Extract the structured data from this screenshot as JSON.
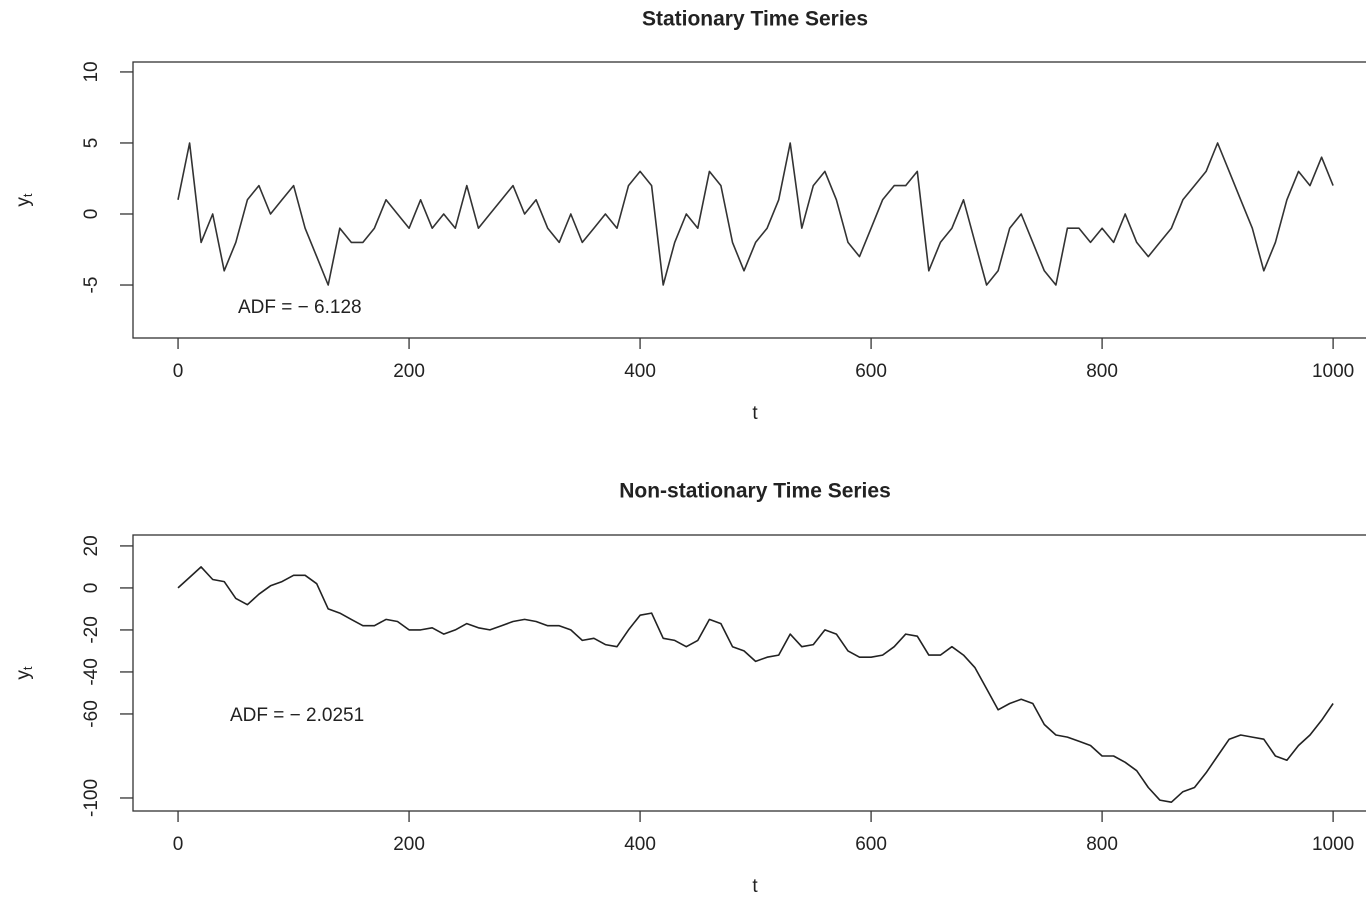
{
  "chart_data": [
    {
      "type": "line",
      "title": "Stationary Time Series",
      "xlabel": "t",
      "ylabel": "y",
      "ylabel_sub": "t",
      "annotations": [
        "ADF = − 6.128"
      ],
      "xlim": [
        -39,
        1038
      ],
      "xticks": [
        0,
        200,
        400,
        600,
        800,
        1000
      ],
      "ylim": [
        -8.73,
        10.7
      ],
      "yticks": [
        10,
        5,
        0,
        -5
      ],
      "x": [
        0,
        10,
        20,
        30,
        40,
        50,
        60,
        70,
        80,
        90,
        100,
        110,
        120,
        130,
        140,
        150,
        160,
        170,
        180,
        190,
        200,
        210,
        220,
        230,
        240,
        250,
        260,
        270,
        280,
        290,
        300,
        310,
        320,
        330,
        340,
        350,
        360,
        370,
        380,
        390,
        400,
        410,
        420,
        430,
        440,
        450,
        460,
        470,
        480,
        490,
        500,
        510,
        520,
        530,
        540,
        550,
        560,
        570,
        580,
        590,
        600,
        610,
        620,
        630,
        640,
        650,
        660,
        670,
        680,
        690,
        700,
        710,
        720,
        730,
        740,
        750,
        760,
        770,
        780,
        790,
        800,
        810,
        820,
        830,
        840,
        850,
        860,
        870,
        880,
        890,
        900,
        910,
        920,
        930,
        940,
        950,
        960,
        970,
        980,
        990,
        1000
      ],
      "series": [
        {
          "color": "#333333",
          "values": [
            1,
            5,
            -2,
            0,
            -4,
            -2,
            1,
            2,
            0,
            1,
            2,
            -1,
            -3,
            -5,
            -1,
            -2,
            -2,
            -1,
            1,
            0,
            -1,
            1,
            -1,
            0,
            -1,
            2,
            -1,
            0,
            1,
            2,
            0,
            1,
            -1,
            -2,
            0,
            -2,
            -1,
            0,
            -1,
            2,
            3,
            2,
            -5,
            -2,
            0,
            -1,
            3,
            2,
            -2,
            -4,
            -2,
            -1,
            1,
            5,
            -1,
            2,
            3,
            1,
            -2,
            -3,
            -1,
            1,
            2,
            2,
            3,
            -4,
            -2,
            -1,
            1,
            -2,
            -5,
            -4,
            -1,
            0,
            -2,
            -4,
            -5,
            -1,
            -1,
            -2,
            -1,
            -2,
            0,
            -2,
            -3,
            -2,
            -1,
            1,
            2,
            3,
            5,
            3,
            1,
            -1,
            -4,
            -2,
            1,
            3,
            2,
            4,
            2
          ]
        }
      ]
    },
    {
      "type": "line",
      "title": "Non-stationary Time Series",
      "xlabel": "t",
      "ylabel": "y",
      "ylabel_sub": "t",
      "annotations": [
        "ADF = − 2.0251"
      ],
      "xlim": [
        -39,
        1038
      ],
      "xticks": [
        0,
        200,
        400,
        600,
        800,
        1000
      ],
      "ylim": [
        -106.2,
        25.2
      ],
      "yticks": [
        20,
        0,
        -20,
        -40,
        -60,
        -100
      ],
      "x": [
        0,
        10,
        20,
        30,
        40,
        50,
        60,
        70,
        80,
        90,
        100,
        110,
        120,
        130,
        140,
        150,
        160,
        170,
        180,
        190,
        200,
        210,
        220,
        230,
        240,
        250,
        260,
        270,
        280,
        290,
        300,
        310,
        320,
        330,
        340,
        350,
        360,
        370,
        380,
        390,
        400,
        410,
        420,
        430,
        440,
        450,
        460,
        470,
        480,
        490,
        500,
        510,
        520,
        530,
        540,
        550,
        560,
        570,
        580,
        590,
        600,
        610,
        620,
        630,
        640,
        650,
        660,
        670,
        680,
        690,
        700,
        710,
        720,
        730,
        740,
        750,
        760,
        770,
        780,
        790,
        800,
        810,
        820,
        830,
        840,
        850,
        860,
        870,
        880,
        890,
        900,
        910,
        920,
        930,
        940,
        950,
        960,
        970,
        980,
        990,
        1000
      ],
      "series": [
        {
          "color": "#222222",
          "values": [
            0,
            5,
            10,
            4,
            3,
            -5,
            -8,
            -3,
            1,
            3,
            6,
            6,
            2,
            -10,
            -12,
            -15,
            -18,
            -18,
            -15,
            -16,
            -20,
            -20,
            -19,
            -22,
            -20,
            -17,
            -19,
            -20,
            -18,
            -16,
            -15,
            -16,
            -18,
            -18,
            -20,
            -25,
            -24,
            -27,
            -28,
            -20,
            -13,
            -12,
            -24,
            -25,
            -28,
            -25,
            -15,
            -17,
            -28,
            -30,
            -35,
            -33,
            -32,
            -22,
            -28,
            -27,
            -20,
            -22,
            -30,
            -33,
            -33,
            -32,
            -28,
            -22,
            -23,
            -32,
            -32,
            -28,
            -32,
            -38,
            -48,
            -58,
            -55,
            -53,
            -55,
            -65,
            -70,
            -71,
            -73,
            -75,
            -80,
            -80,
            -83,
            -87,
            -95,
            -101,
            -102,
            -97,
            -95,
            -88,
            -80,
            -72,
            -70,
            -71,
            -72,
            -80,
            -82,
            -75,
            -70,
            -63,
            -55
          ]
        }
      ]
    }
  ]
}
